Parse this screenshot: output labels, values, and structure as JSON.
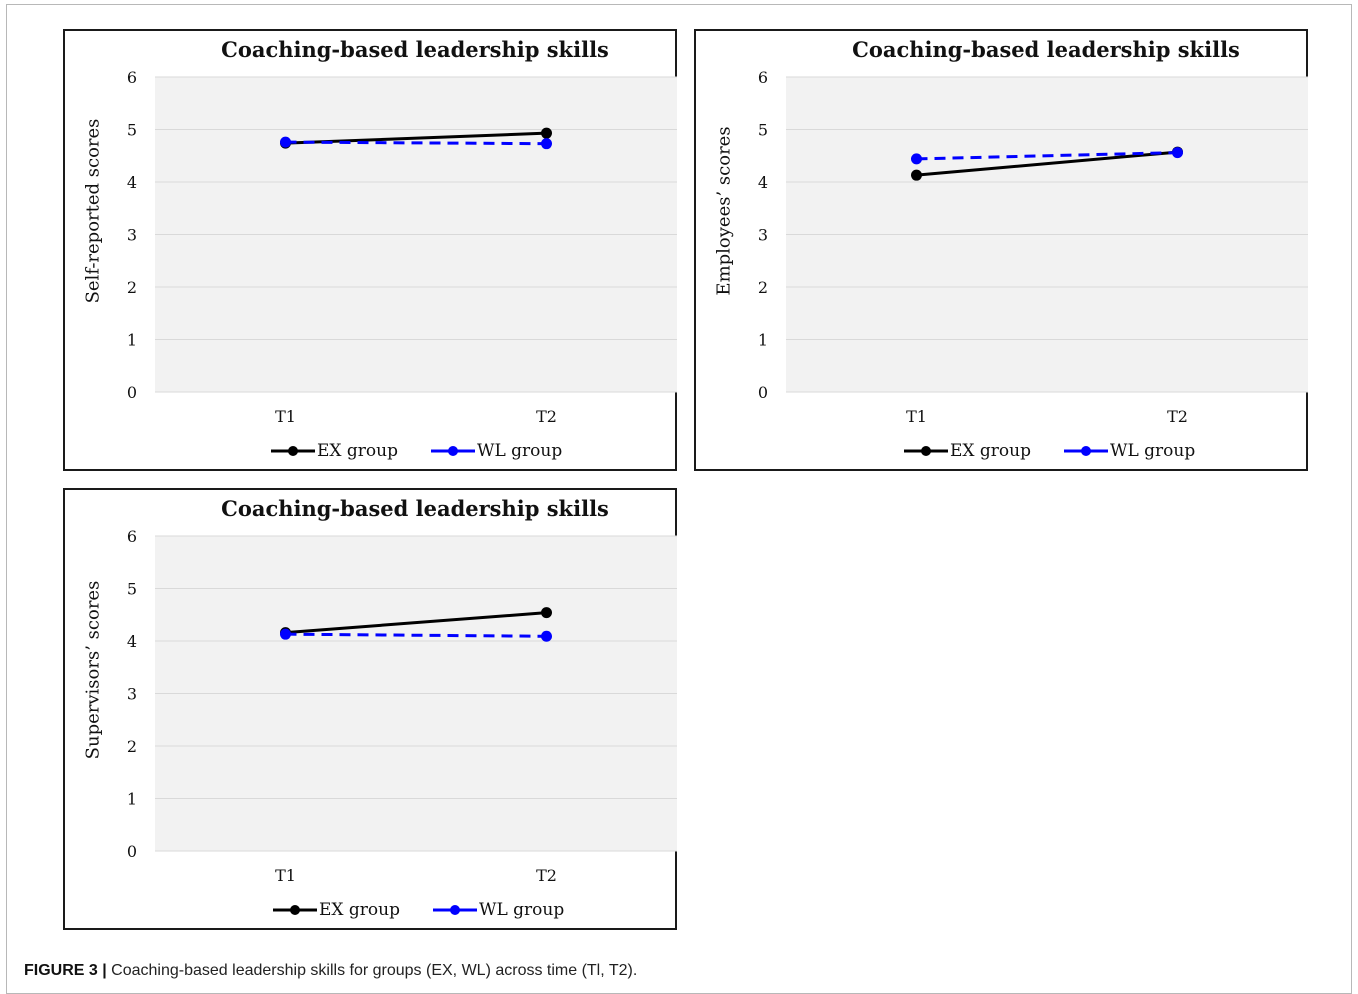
{
  "caption": {
    "label": "FIGURE 3 |",
    "text": " Coaching-based leadership skills for groups (EX, WL) across time (Tl, T2)."
  },
  "colors": {
    "ex": "#000000",
    "wl": "#0000ff",
    "plot_bg": "#f2f2f2",
    "grid": "#d9d9d9"
  },
  "chart_data": [
    {
      "type": "line",
      "title": "Coaching-based leadership skills",
      "xlabel": "",
      "ylabel": "Self-reported scores",
      "categories": [
        "T1",
        "T2"
      ],
      "ylim": [
        0,
        6
      ],
      "yticks": [
        "0",
        "1",
        "2",
        "3",
        "4",
        "5",
        "6"
      ],
      "grid": true,
      "legend_position": "bottom",
      "series": [
        {
          "name": "EX group",
          "values": [
            4.74,
            4.93
          ],
          "style": "solid",
          "color": "#000000"
        },
        {
          "name": "WL group",
          "values": [
            4.76,
            4.73
          ],
          "style": "dashed",
          "color": "#0000ff"
        }
      ]
    },
    {
      "type": "line",
      "title": "Coaching-based leadership skills",
      "xlabel": "",
      "ylabel": "Employees’ scores",
      "categories": [
        "T1",
        "T2"
      ],
      "ylim": [
        0,
        6
      ],
      "yticks": [
        "0",
        "1",
        "2",
        "3",
        "4",
        "5",
        "6"
      ],
      "grid": true,
      "legend_position": "bottom",
      "series": [
        {
          "name": "EX group",
          "values": [
            4.13,
            4.57
          ],
          "style": "solid",
          "color": "#000000"
        },
        {
          "name": "WL group",
          "values": [
            4.44,
            4.56
          ],
          "style": "dashed",
          "color": "#0000ff"
        }
      ]
    },
    {
      "type": "line",
      "title": "Coaching-based leadership skills",
      "xlabel": "",
      "ylabel": "Supervisors’ scores",
      "categories": [
        "T1",
        "T2"
      ],
      "ylim": [
        0,
        6
      ],
      "yticks": [
        "0",
        "1",
        "2",
        "3",
        "4",
        "5",
        "6"
      ],
      "grid": true,
      "legend_position": "bottom",
      "series": [
        {
          "name": "EX group",
          "values": [
            4.16,
            4.54
          ],
          "style": "solid",
          "color": "#000000"
        },
        {
          "name": "WL group",
          "values": [
            4.13,
            4.09
          ],
          "style": "dashed",
          "color": "#0000ff"
        }
      ]
    }
  ]
}
